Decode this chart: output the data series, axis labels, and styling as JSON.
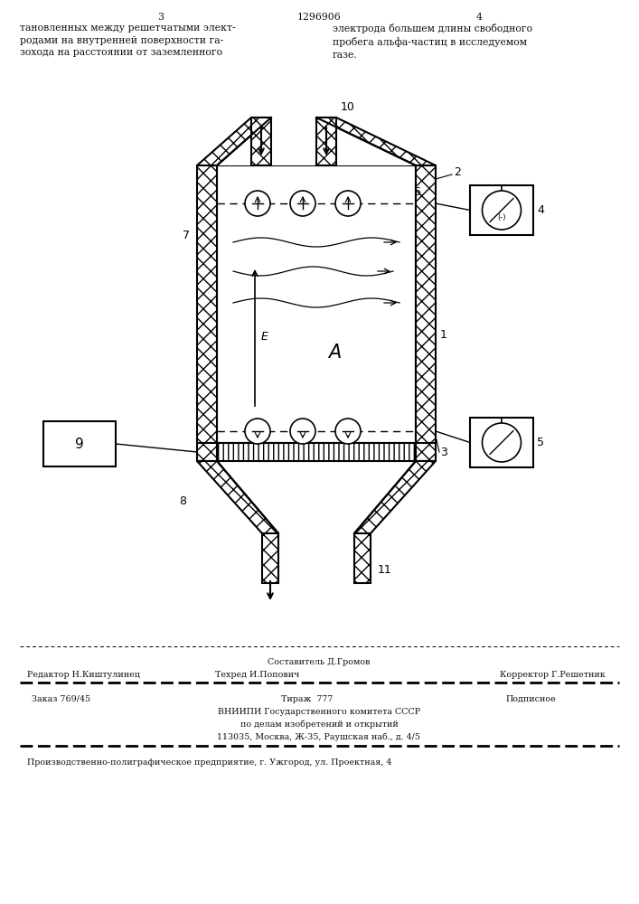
{
  "bg_color": "#ffffff",
  "page_width": 7.07,
  "page_height": 10.0,
  "header_text_left": "тановленных между решетчатыми элект-\nродами на внутренней поверхности га-\nзохода на расстоянии от заземленного",
  "header_text_right": "электрода большем длины свободного\nпробега альфа-частиц в исследуемом\nгазе.",
  "header_num_left": "3",
  "header_num_center": "1296906",
  "header_num_right": "4",
  "footer_composer": "Составитель Д.Громов",
  "footer_line1_col1": "Редактор Н.Киштулинец",
  "footer_line1_col2": "Техред И.Попович",
  "footer_line1_col3": "Корректор Г.Решетник",
  "footer_order": "Заказ 769/45",
  "footer_tirazh": "Тираж  777",
  "footer_podp": "Подписное",
  "footer_org1": "ВНИИПИ Государственного комитета СССР",
  "footer_org2": "по делам изобретений и открытий",
  "footer_org3": "113035, Москва, Ж-35, Раушская наб., д. 4/5",
  "footer_factory": "Производственно-полиграфическое предприятие, г. Ужгород, ул. Проектная, 4"
}
